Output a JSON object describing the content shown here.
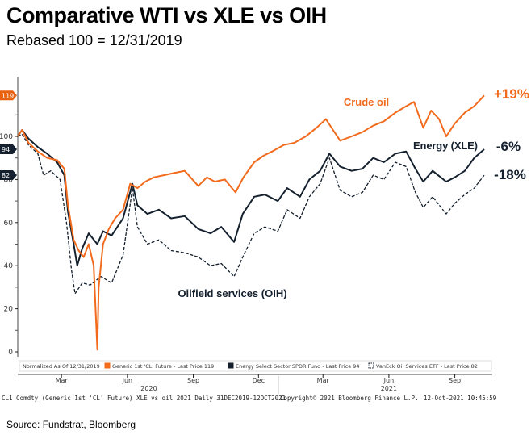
{
  "title": "Comparative WTI vs XLE vs OIH",
  "subtitle": "Rebased 100 = 12/31/2019",
  "source": "Source: Fundstrat, Bloomberg",
  "legend": {
    "normalized": "Normalized As Of 12/31/2019"
  },
  "footer": {
    "left": "CL1 Comdty (Generic 1st 'CL' Future) XLE vs oil 2021  Daily 31DEC2019-12OCT2021",
    "copyright": "Copyright© 2021 Bloomberg Finance L.P.",
    "timestamp": "12-Oct-2021 10:45:59"
  },
  "chart_data": {
    "type": "line",
    "ylim": [
      0,
      125
    ],
    "xlim": [
      "2019-12-31",
      "2021-10-12"
    ],
    "yticks": [
      "0",
      "20",
      "40",
      "60",
      "80",
      "100"
    ],
    "xticks": [
      {
        "label": "Mar",
        "date": "2020-03-01"
      },
      {
        "label": "Jun",
        "date": "2020-06-01"
      },
      {
        "label": "Sep",
        "date": "2020-09-01"
      },
      {
        "label": "Dec",
        "date": "2020-12-01"
      },
      {
        "label": "Mar",
        "date": "2021-03-01"
      },
      {
        "label": "Jun",
        "date": "2021-06-01"
      },
      {
        "label": "Sep",
        "date": "2021-09-01"
      }
    ],
    "years": [
      {
        "label": "2020",
        "date": "2020-07-01"
      },
      {
        "label": "2021",
        "date": "2021-06-01"
      }
    ],
    "series": [
      {
        "name": "Generic 1st 'CL' Future - Last Price 119",
        "label": "Crude oil",
        "change": "+19%",
        "last": "119",
        "color": "#f26a1b",
        "dash": false,
        "points": [
          [
            "2019-12-31",
            100
          ],
          [
            "2020-01-06",
            103
          ],
          [
            "2020-01-15",
            97
          ],
          [
            "2020-01-28",
            93
          ],
          [
            "2020-02-10",
            90
          ],
          [
            "2020-02-24",
            89
          ],
          [
            "2020-03-05",
            85
          ],
          [
            "2020-03-10",
            68
          ],
          [
            "2020-03-18",
            52
          ],
          [
            "2020-03-25",
            47
          ],
          [
            "2020-04-01",
            44
          ],
          [
            "2020-04-08",
            50
          ],
          [
            "2020-04-15",
            40
          ],
          [
            "2020-04-20",
            1
          ],
          [
            "2020-04-22",
            30
          ],
          [
            "2020-04-28",
            50
          ],
          [
            "2020-05-06",
            57
          ],
          [
            "2020-05-15",
            62
          ],
          [
            "2020-05-26",
            66
          ],
          [
            "2020-06-05",
            78
          ],
          [
            "2020-06-15",
            76
          ],
          [
            "2020-06-26",
            79
          ],
          [
            "2020-07-08",
            81
          ],
          [
            "2020-07-22",
            82
          ],
          [
            "2020-08-05",
            83
          ],
          [
            "2020-08-20",
            84
          ],
          [
            "2020-09-08",
            77
          ],
          [
            "2020-09-20",
            81
          ],
          [
            "2020-10-01",
            79
          ],
          [
            "2020-10-15",
            80
          ],
          [
            "2020-10-30",
            74
          ],
          [
            "2020-11-10",
            81
          ],
          [
            "2020-11-25",
            88
          ],
          [
            "2020-12-08",
            91
          ],
          [
            "2020-12-20",
            93
          ],
          [
            "2021-01-05",
            96
          ],
          [
            "2021-01-20",
            97
          ],
          [
            "2021-02-05",
            100
          ],
          [
            "2021-02-20",
            104
          ],
          [
            "2021-03-05",
            108
          ],
          [
            "2021-03-15",
            103
          ],
          [
            "2021-03-25",
            98
          ],
          [
            "2021-04-10",
            100
          ],
          [
            "2021-04-25",
            102
          ],
          [
            "2021-05-10",
            105
          ],
          [
            "2021-05-25",
            107
          ],
          [
            "2021-06-10",
            111
          ],
          [
            "2021-06-25",
            114
          ],
          [
            "2021-07-06",
            116
          ],
          [
            "2021-07-19",
            104
          ],
          [
            "2021-07-30",
            112
          ],
          [
            "2021-08-10",
            108
          ],
          [
            "2021-08-20",
            100
          ],
          [
            "2021-09-01",
            106
          ],
          [
            "2021-09-15",
            111
          ],
          [
            "2021-09-28",
            114
          ],
          [
            "2021-10-12",
            119
          ]
        ]
      },
      {
        "name": "Energy Select Sector SPDR Fund - Last Price 94",
        "label": "Energy (XLE)",
        "change": "-6%",
        "last": "94",
        "color": "#14202e",
        "dash": false,
        "points": [
          [
            "2019-12-31",
            100
          ],
          [
            "2020-01-06",
            103
          ],
          [
            "2020-01-15",
            99
          ],
          [
            "2020-01-28",
            95
          ],
          [
            "2020-02-10",
            92
          ],
          [
            "2020-02-24",
            88
          ],
          [
            "2020-03-05",
            82
          ],
          [
            "2020-03-10",
            65
          ],
          [
            "2020-03-18",
            50
          ],
          [
            "2020-03-23",
            40
          ],
          [
            "2020-03-30",
            48
          ],
          [
            "2020-04-08",
            55
          ],
          [
            "2020-04-20",
            50
          ],
          [
            "2020-04-28",
            56
          ],
          [
            "2020-05-10",
            54
          ],
          [
            "2020-05-26",
            62
          ],
          [
            "2020-06-08",
            78
          ],
          [
            "2020-06-15",
            68
          ],
          [
            "2020-06-29",
            64
          ],
          [
            "2020-07-15",
            66
          ],
          [
            "2020-08-01",
            62
          ],
          [
            "2020-08-20",
            63
          ],
          [
            "2020-09-08",
            57
          ],
          [
            "2020-09-25",
            55
          ],
          [
            "2020-10-10",
            58
          ],
          [
            "2020-10-28",
            51
          ],
          [
            "2020-11-09",
            64
          ],
          [
            "2020-11-25",
            72
          ],
          [
            "2020-12-10",
            73
          ],
          [
            "2020-12-28",
            70
          ],
          [
            "2021-01-10",
            76
          ],
          [
            "2021-01-28",
            72
          ],
          [
            "2021-02-10",
            80
          ],
          [
            "2021-02-25",
            84
          ],
          [
            "2021-03-10",
            92
          ],
          [
            "2021-03-25",
            86
          ],
          [
            "2021-04-10",
            84
          ],
          [
            "2021-04-25",
            85
          ],
          [
            "2021-05-10",
            90
          ],
          [
            "2021-05-25",
            88
          ],
          [
            "2021-06-10",
            92
          ],
          [
            "2021-06-25",
            93
          ],
          [
            "2021-07-08",
            85
          ],
          [
            "2021-07-19",
            79
          ],
          [
            "2021-08-01",
            84
          ],
          [
            "2021-08-20",
            79
          ],
          [
            "2021-09-01",
            81
          ],
          [
            "2021-09-15",
            84
          ],
          [
            "2021-09-28",
            90
          ],
          [
            "2021-10-12",
            94
          ]
        ]
      },
      {
        "name": "VanEck Oil Services ETF - Last Price 82",
        "label": "Oilfield services (OIH)",
        "change": "-18%",
        "last": "82",
        "color": "#14202e",
        "dash": true,
        "points": [
          [
            "2019-12-31",
            100
          ],
          [
            "2020-01-06",
            101
          ],
          [
            "2020-01-15",
            96
          ],
          [
            "2020-01-28",
            92
          ],
          [
            "2020-02-05",
            82
          ],
          [
            "2020-02-15",
            84
          ],
          [
            "2020-02-28",
            80
          ],
          [
            "2020-03-08",
            60
          ],
          [
            "2020-03-15",
            38
          ],
          [
            "2020-03-20",
            27
          ],
          [
            "2020-03-30",
            32
          ],
          [
            "2020-04-10",
            31
          ],
          [
            "2020-04-25",
            35
          ],
          [
            "2020-05-10",
            32
          ],
          [
            "2020-05-26",
            45
          ],
          [
            "2020-06-08",
            76
          ],
          [
            "2020-06-15",
            58
          ],
          [
            "2020-06-29",
            50
          ],
          [
            "2020-07-15",
            52
          ],
          [
            "2020-08-01",
            47
          ],
          [
            "2020-08-20",
            46
          ],
          [
            "2020-09-08",
            44
          ],
          [
            "2020-09-25",
            40
          ],
          [
            "2020-10-10",
            41
          ],
          [
            "2020-10-28",
            35
          ],
          [
            "2020-11-09",
            44
          ],
          [
            "2020-11-25",
            55
          ],
          [
            "2020-12-10",
            58
          ],
          [
            "2020-12-28",
            56
          ],
          [
            "2021-01-10",
            66
          ],
          [
            "2021-01-28",
            62
          ],
          [
            "2021-02-10",
            72
          ],
          [
            "2021-02-25",
            78
          ],
          [
            "2021-03-10",
            90
          ],
          [
            "2021-03-25",
            75
          ],
          [
            "2021-04-10",
            72
          ],
          [
            "2021-04-25",
            74
          ],
          [
            "2021-05-10",
            82
          ],
          [
            "2021-05-25",
            80
          ],
          [
            "2021-06-10",
            88
          ],
          [
            "2021-06-25",
            86
          ],
          [
            "2021-07-08",
            74
          ],
          [
            "2021-07-19",
            67
          ],
          [
            "2021-08-01",
            72
          ],
          [
            "2021-08-20",
            64
          ],
          [
            "2021-09-01",
            69
          ],
          [
            "2021-09-15",
            73
          ],
          [
            "2021-09-28",
            76
          ],
          [
            "2021-10-12",
            82
          ]
        ]
      }
    ]
  }
}
